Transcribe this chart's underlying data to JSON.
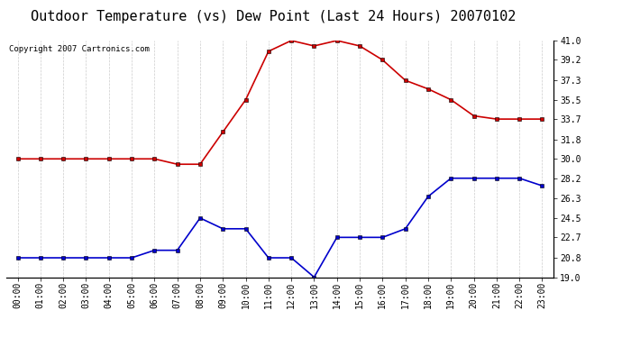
{
  "title": "Outdoor Temperature (vs) Dew Point (Last 24 Hours) 20070102",
  "copyright_text": "Copyright 2007 Cartronics.com",
  "hours": [
    "00:00",
    "01:00",
    "02:00",
    "03:00",
    "04:00",
    "05:00",
    "06:00",
    "07:00",
    "08:00",
    "09:00",
    "10:00",
    "11:00",
    "12:00",
    "13:00",
    "14:00",
    "15:00",
    "16:00",
    "17:00",
    "18:00",
    "19:00",
    "20:00",
    "21:00",
    "22:00",
    "23:00"
  ],
  "temp": [
    30.0,
    30.0,
    30.0,
    30.0,
    30.0,
    30.0,
    30.0,
    29.5,
    29.5,
    32.5,
    35.5,
    40.0,
    41.0,
    40.5,
    41.0,
    40.5,
    39.2,
    37.3,
    36.5,
    35.5,
    34.0,
    33.7,
    33.7,
    33.7
  ],
  "dewpoint": [
    20.8,
    20.8,
    20.8,
    20.8,
    20.8,
    20.8,
    21.5,
    21.5,
    24.5,
    23.5,
    23.5,
    20.8,
    20.8,
    19.0,
    22.7,
    22.7,
    22.7,
    23.5,
    26.5,
    28.2,
    28.2,
    28.2,
    28.2,
    27.5
  ],
  "ylim": [
    19.0,
    41.0
  ],
  "yticks": [
    19.0,
    20.8,
    22.7,
    24.5,
    26.3,
    28.2,
    30.0,
    31.8,
    33.7,
    35.5,
    37.3,
    39.2,
    41.0
  ],
  "temp_color": "#cc0000",
  "dewpoint_color": "#0000cc",
  "grid_color": "#cccccc",
  "bg_color": "#ffffff",
  "title_fontsize": 11,
  "copyright_fontsize": 6.5,
  "tick_fontsize": 7,
  "ytick_fontsize": 7,
  "marker": "s",
  "marker_size": 2.5,
  "line_width": 1.2
}
